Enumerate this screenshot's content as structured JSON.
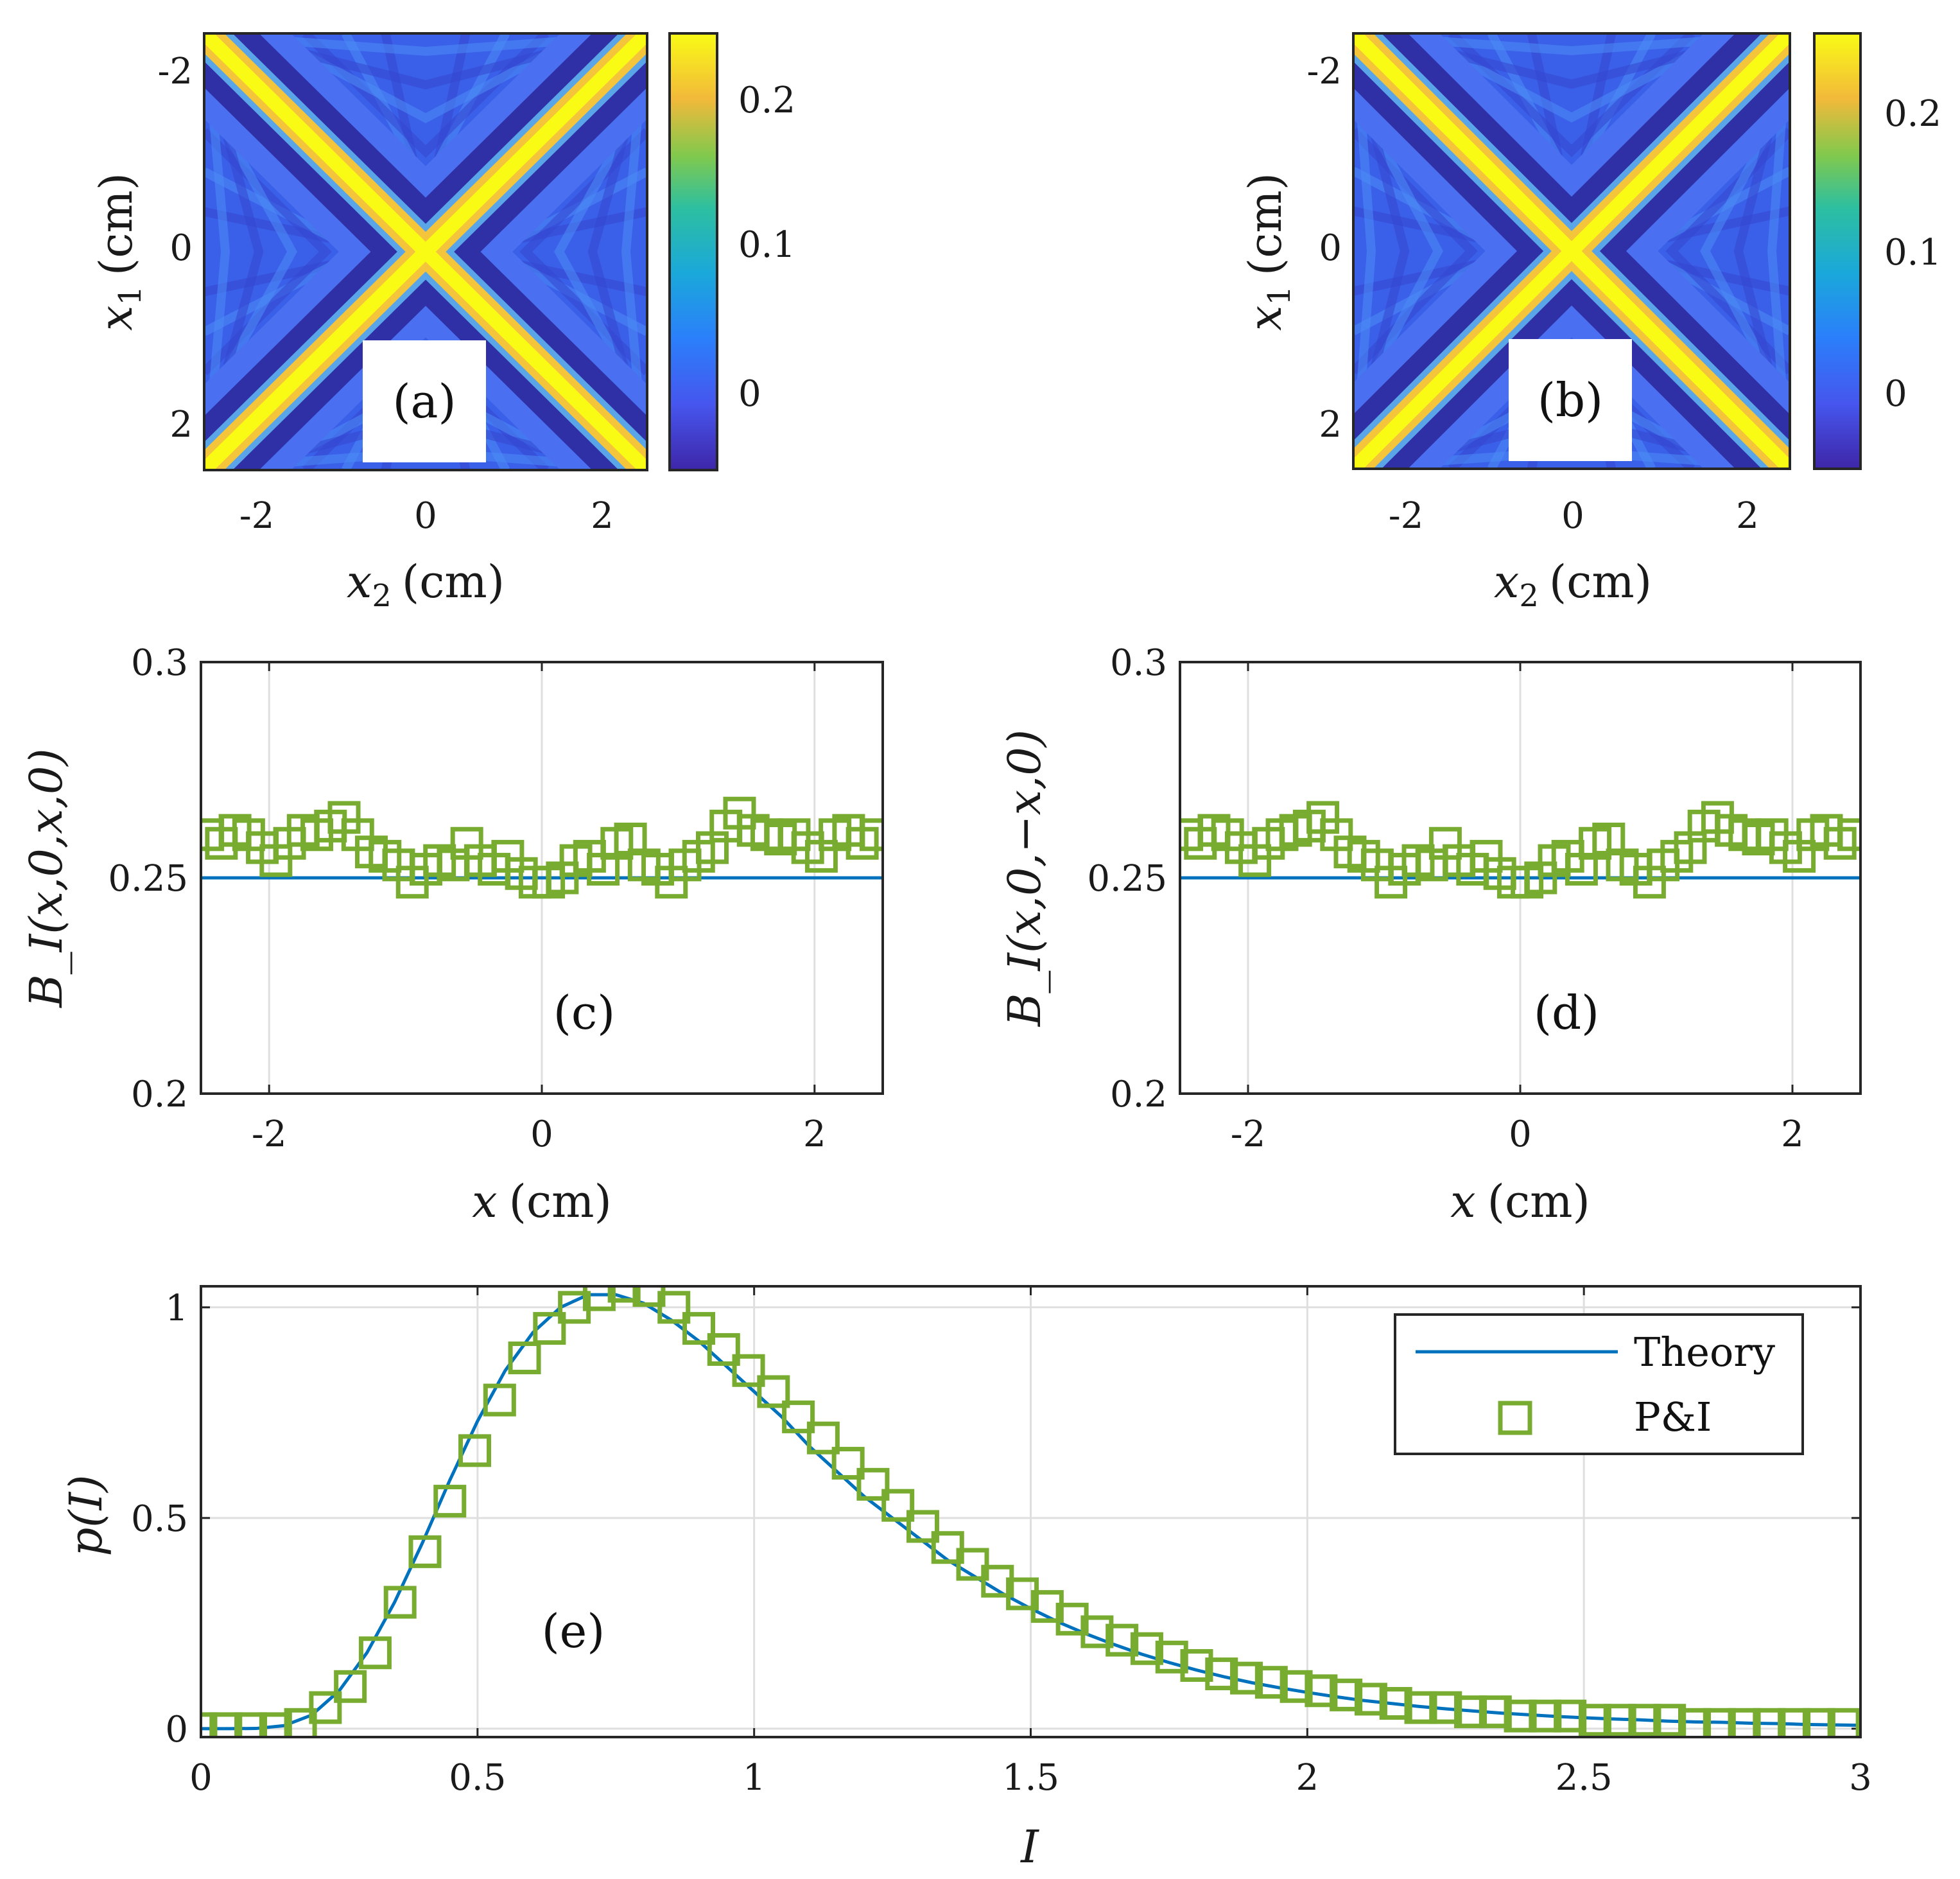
{
  "colors": {
    "theory": "#0072BD",
    "data": "#77AC30",
    "grid": "#dfdfdf",
    "axis": "#262626"
  },
  "chart_data": [
    {
      "id": "a",
      "type": "heatmap",
      "panel_label": "(a)",
      "xlabel_var": "x",
      "xlabel_sub": "2",
      "xlabel_unit": "(cm)",
      "ylabel_var": "x",
      "ylabel_sub": "1",
      "ylabel_unit": "(cm)",
      "xlim": [
        -2.5,
        2.5
      ],
      "ylim": [
        -2.5,
        2.5
      ],
      "xticks": [
        -2,
        0,
        2
      ],
      "xtick_labels": [
        "-2",
        "0",
        "2"
      ],
      "yticks": [
        -2,
        0,
        2
      ],
      "ytick_labels": [
        "-2",
        "0",
        "2"
      ],
      "colorbar": {
        "range": [
          -0.05,
          0.25
        ],
        "ticks": [
          0,
          0.1,
          0.2
        ],
        "tick_labels": [
          "0",
          "0.1",
          "0.2"
        ]
      },
      "description_values": {
        "peak": 0.25,
        "background": 0.0,
        "minimum": -0.05
      }
    },
    {
      "id": "b",
      "type": "heatmap",
      "panel_label": "(b)",
      "xlabel_var": "x",
      "xlabel_sub": "2",
      "xlabel_unit": "(cm)",
      "ylabel_var": "x",
      "ylabel_sub": "1",
      "ylabel_unit": "(cm)",
      "xlim": [
        -2.5,
        2.5
      ],
      "ylim": [
        -2.5,
        2.5
      ],
      "xticks": [
        -2,
        0,
        2
      ],
      "xtick_labels": [
        "-2",
        "0",
        "2"
      ],
      "yticks": [
        -2,
        0,
        2
      ],
      "ytick_labels": [
        "-2",
        "0",
        "2"
      ],
      "colorbar": {
        "range": [
          -0.05,
          0.26
        ],
        "ticks": [
          0,
          0.1,
          0.2
        ],
        "tick_labels": [
          "0",
          "0.1",
          "0.2"
        ]
      },
      "description_values": {
        "peak": 0.26,
        "background": 0.0,
        "minimum": -0.05
      }
    },
    {
      "id": "c",
      "type": "line",
      "panel_label": "(c)",
      "ylabel": "B_I(x,0,x,0)",
      "xlabel_var": "x",
      "xlabel_unit": "(cm)",
      "xlim": [
        -2.5,
        2.5
      ],
      "ylim": [
        0.2,
        0.3
      ],
      "xticks": [
        -2,
        0,
        2
      ],
      "xtick_labels": [
        "-2",
        "0",
        "2"
      ],
      "yticks": [
        0.2,
        0.25,
        0.3
      ],
      "ytick_labels": [
        "0.2",
        "0.25",
        "0.3"
      ],
      "theory_value": 0.25,
      "series": [
        {
          "name": "P&I",
          "x": [
            -2.45,
            -2.35,
            -2.25,
            -2.15,
            -2.05,
            -1.95,
            -1.85,
            -1.75,
            -1.65,
            -1.55,
            -1.45,
            -1.35,
            -1.25,
            -1.15,
            -1.05,
            -0.95,
            -0.85,
            -0.75,
            -0.65,
            -0.55,
            -0.45,
            -0.35,
            -0.25,
            -0.15,
            -0.05,
            0.05,
            0.15,
            0.25,
            0.35,
            0.45,
            0.55,
            0.65,
            0.75,
            0.85,
            0.95,
            1.05,
            1.15,
            1.25,
            1.35,
            1.45,
            1.55,
            1.65,
            1.75,
            1.85,
            1.95,
            2.05,
            2.15,
            2.25,
            2.35,
            2.45
          ],
          "y": [
            0.26,
            0.258,
            0.261,
            0.26,
            0.257,
            0.254,
            0.258,
            0.261,
            0.26,
            0.262,
            0.264,
            0.26,
            0.256,
            0.255,
            0.253,
            0.249,
            0.252,
            0.254,
            0.253,
            0.258,
            0.254,
            0.252,
            0.255,
            0.251,
            0.249,
            0.249,
            0.25,
            0.254,
            0.255,
            0.252,
            0.258,
            0.259,
            0.253,
            0.252,
            0.249,
            0.253,
            0.255,
            0.257,
            0.262,
            0.265,
            0.261,
            0.26,
            0.259,
            0.26,
            0.257,
            0.255,
            0.26,
            0.261,
            0.258,
            0.26
          ]
        }
      ]
    },
    {
      "id": "d",
      "type": "line",
      "panel_label": "(d)",
      "ylabel": "B_I(x,0,−x,0)",
      "xlabel_var": "x",
      "xlabel_unit": "(cm)",
      "xlim": [
        -2.5,
        2.5
      ],
      "ylim": [
        0.2,
        0.3
      ],
      "xticks": [
        -2,
        0,
        2
      ],
      "xtick_labels": [
        "-2",
        "0",
        "2"
      ],
      "yticks": [
        0.2,
        0.25,
        0.3
      ],
      "ytick_labels": [
        "0.2",
        "0.25",
        "0.3"
      ],
      "theory_value": 0.25,
      "series": [
        {
          "name": "P&I",
          "x": [
            -2.45,
            -2.35,
            -2.25,
            -2.15,
            -2.05,
            -1.95,
            -1.85,
            -1.75,
            -1.65,
            -1.55,
            -1.45,
            -1.35,
            -1.25,
            -1.15,
            -1.05,
            -0.95,
            -0.85,
            -0.75,
            -0.65,
            -0.55,
            -0.45,
            -0.35,
            -0.25,
            -0.15,
            -0.05,
            0.05,
            0.15,
            0.25,
            0.35,
            0.45,
            0.55,
            0.65,
            0.75,
            0.85,
            0.95,
            1.05,
            1.15,
            1.25,
            1.35,
            1.45,
            1.55,
            1.65,
            1.75,
            1.85,
            1.95,
            2.05,
            2.15,
            2.25,
            2.35,
            2.45
          ],
          "y": [
            0.26,
            0.258,
            0.261,
            0.26,
            0.257,
            0.254,
            0.258,
            0.26,
            0.261,
            0.262,
            0.264,
            0.26,
            0.256,
            0.255,
            0.253,
            0.249,
            0.252,
            0.254,
            0.253,
            0.258,
            0.254,
            0.252,
            0.255,
            0.251,
            0.249,
            0.249,
            0.25,
            0.254,
            0.255,
            0.252,
            0.258,
            0.259,
            0.253,
            0.252,
            0.249,
            0.253,
            0.255,
            0.257,
            0.262,
            0.264,
            0.261,
            0.26,
            0.259,
            0.26,
            0.257,
            0.255,
            0.26,
            0.261,
            0.258,
            0.26
          ]
        }
      ]
    },
    {
      "id": "e",
      "type": "line",
      "panel_label": "(e)",
      "ylabel": "p(I)",
      "xlabel": "I",
      "xlim": [
        0,
        3
      ],
      "ylim": [
        -0.02,
        1.05
      ],
      "xticks": [
        0,
        0.5,
        1,
        1.5,
        2,
        2.5,
        3
      ],
      "xtick_labels": [
        "0",
        "0.5",
        "1",
        "1.5",
        "2",
        "2.5",
        "3"
      ],
      "yticks": [
        0,
        0.5,
        1
      ],
      "ytick_labels": [
        "0",
        "0.5",
        "1"
      ],
      "legend": {
        "position": "top-right",
        "entries": [
          "Theory",
          "P&I"
        ]
      },
      "series": [
        {
          "name": "Theory",
          "kind": "line",
          "x": [
            0,
            0.05,
            0.1,
            0.15,
            0.2,
            0.25,
            0.3,
            0.35,
            0.4,
            0.45,
            0.5,
            0.55,
            0.6,
            0.65,
            0.7,
            0.75,
            0.8,
            0.85,
            0.9,
            0.95,
            1.0,
            1.05,
            1.1,
            1.15,
            1.2,
            1.25,
            1.3,
            1.35,
            1.4,
            1.45,
            1.5,
            1.55,
            1.6,
            1.65,
            1.7,
            1.75,
            1.8,
            1.85,
            1.9,
            1.95,
            2.0,
            2.05,
            2.1,
            2.15,
            2.2,
            2.25,
            2.3,
            2.35,
            2.4,
            2.45,
            2.5,
            2.55,
            2.6,
            2.65,
            2.7,
            2.75,
            2.8,
            2.85,
            2.9,
            2.95,
            3.0
          ],
          "y": [
            0,
            0,
            0.0005,
            0.007,
            0.032,
            0.09,
            0.18,
            0.3,
            0.44,
            0.59,
            0.73,
            0.85,
            0.94,
            1.0,
            1.03,
            1.03,
            1.01,
            0.97,
            0.92,
            0.86,
            0.8,
            0.74,
            0.67,
            0.61,
            0.55,
            0.5,
            0.45,
            0.4,
            0.36,
            0.32,
            0.285,
            0.253,
            0.225,
            0.2,
            0.177,
            0.157,
            0.139,
            0.123,
            0.109,
            0.097,
            0.086,
            0.076,
            0.067,
            0.06,
            0.053,
            0.047,
            0.042,
            0.037,
            0.033,
            0.029,
            0.026,
            0.023,
            0.021,
            0.018,
            0.016,
            0.015,
            0.013,
            0.012,
            0.01,
            0.009,
            0.008
          ]
        },
        {
          "name": "P&I",
          "kind": "marker",
          "x": [
            0.0,
            0.045,
            0.09,
            0.135,
            0.18,
            0.225,
            0.27,
            0.315,
            0.36,
            0.405,
            0.45,
            0.495,
            0.54,
            0.585,
            0.63,
            0.675,
            0.72,
            0.765,
            0.81,
            0.855,
            0.9,
            0.945,
            0.99,
            1.035,
            1.08,
            1.125,
            1.17,
            1.215,
            1.26,
            1.305,
            1.35,
            1.395,
            1.44,
            1.485,
            1.53,
            1.575,
            1.62,
            1.665,
            1.71,
            1.755,
            1.8,
            1.845,
            1.89,
            1.935,
            1.98,
            2.025,
            2.07,
            2.115,
            2.16,
            2.205,
            2.25,
            2.295,
            2.34,
            2.385,
            2.43,
            2.475,
            2.52,
            2.565,
            2.61,
            2.655,
            2.7,
            2.745,
            2.79,
            2.835,
            2.88,
            2.925,
            2.97
          ],
          "y": [
            0,
            0,
            0,
            0,
            0.01,
            0.05,
            0.1,
            0.18,
            0.3,
            0.42,
            0.54,
            0.66,
            0.78,
            0.88,
            0.95,
            1.0,
            1.03,
            1.05,
            1.04,
            1.0,
            0.95,
            0.9,
            0.85,
            0.8,
            0.74,
            0.69,
            0.63,
            0.58,
            0.53,
            0.48,
            0.43,
            0.39,
            0.35,
            0.32,
            0.29,
            0.26,
            0.23,
            0.21,
            0.19,
            0.17,
            0.15,
            0.13,
            0.12,
            0.11,
            0.1,
            0.09,
            0.08,
            0.07,
            0.06,
            0.05,
            0.05,
            0.04,
            0.04,
            0.03,
            0.03,
            0.03,
            0.02,
            0.02,
            0.02,
            0.02,
            0.01,
            0.01,
            0.01,
            0.01,
            0.01,
            0.01,
            0.01
          ]
        }
      ]
    }
  ]
}
